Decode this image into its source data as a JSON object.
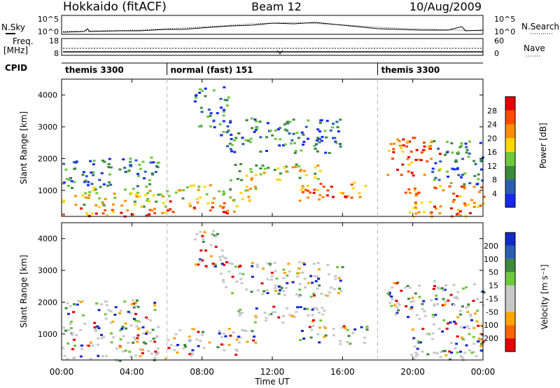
{
  "header": {
    "radar": "Hokkaido (fitACF)",
    "beam": "Beam 12",
    "date": "10/Aug/2009"
  },
  "status_panel": {
    "nsky_label": "N.Sky",
    "nsky_ticks": [
      "10^5",
      "10^0"
    ],
    "nsearch_label": "N.Search",
    "nsearch_ticks": [
      "10^5",
      "10^0"
    ],
    "freq_label_1": "Freq.",
    "freq_label_2": "[MHz]",
    "freq_ticks": [
      "18",
      "8"
    ],
    "nave_label": "Nave",
    "nave_ticks": [
      "60",
      "0"
    ],
    "cpid_label": "CPID"
  },
  "cpid_segments": [
    {
      "start_hour": 0,
      "end_hour": 6,
      "label": "themis 3300"
    },
    {
      "start_hour": 6,
      "end_hour": 18,
      "label": "normal (fast) 151"
    },
    {
      "start_hour": 18,
      "end_hour": 24,
      "label": "themis 3300"
    }
  ],
  "chart_data": [
    {
      "type": "heatmap",
      "parameter": "power",
      "ylabel": "Slant Range [km]",
      "xlabel": "Time UT",
      "x_range_hours": [
        0,
        24
      ],
      "xticks": [
        "00:00",
        "04:00",
        "08:00",
        "12:00",
        "16:00",
        "20:00",
        "00:00"
      ],
      "ylim": [
        180,
        4500
      ],
      "yticks": [
        "1000",
        "2000",
        "3000",
        "4000"
      ],
      "colorbar": {
        "label": "Power [dB]",
        "ticks": [
          "4",
          "8",
          "12",
          "16",
          "20",
          "24",
          "28"
        ],
        "colors": [
          "#1428f0",
          "#2a5fb0",
          "#3c8a3c",
          "#6ec83c",
          "#ffd700",
          "#ff8c00",
          "#ff4a00",
          "#e60000"
        ]
      },
      "echo_regions": [
        {
          "t0": 0.0,
          "t1": 6.0,
          "r0": 180,
          "r1": 500,
          "level": "high"
        },
        {
          "t0": 0.0,
          "t1": 6.0,
          "r0": 500,
          "r1": 1150,
          "level": "mid"
        },
        {
          "t0": 0.0,
          "t1": 5.5,
          "r0": 1150,
          "r1": 2100,
          "level": "low"
        },
        {
          "t0": 6.0,
          "t1": 10.0,
          "r0": 300,
          "r1": 700,
          "level": "high"
        },
        {
          "t0": 6.0,
          "t1": 11.0,
          "r0": 700,
          "r1": 1200,
          "level": "mid"
        },
        {
          "t0": 9.5,
          "t1": 15.0,
          "r0": 1350,
          "r1": 1900,
          "level": "mid"
        },
        {
          "t0": 13.5,
          "t1": 17.5,
          "r0": 700,
          "r1": 1300,
          "level": "high"
        },
        {
          "t0": 9.0,
          "t1": 16.0,
          "r0": 2200,
          "r1": 3300,
          "level": "low"
        },
        {
          "t0": 7.5,
          "t1": 9.5,
          "r0": 3000,
          "r1": 4300,
          "level": "low"
        },
        {
          "t0": 18.5,
          "t1": 21.5,
          "r0": 1500,
          "r1": 2700,
          "level": "high"
        },
        {
          "t0": 19.5,
          "t1": 24.0,
          "r0": 200,
          "r1": 1200,
          "level": "high"
        },
        {
          "t0": 21.0,
          "t1": 24.0,
          "r0": 1200,
          "r1": 2600,
          "level": "low"
        }
      ]
    },
    {
      "type": "heatmap",
      "parameter": "velocity",
      "ylabel": "Slant Range [km]",
      "xlabel": "Time UT",
      "x_range_hours": [
        0,
        24
      ],
      "xticks": [
        "00:00",
        "04:00",
        "08:00",
        "12:00",
        "16:00",
        "20:00",
        "00:00"
      ],
      "ylim": [
        180,
        4500
      ],
      "yticks": [
        "1000",
        "2000",
        "3000",
        "4000"
      ],
      "colorbar": {
        "label": "Velocity [m s⁻¹]",
        "ticks": [
          "200",
          "100",
          "50",
          "15",
          "-15",
          "-50",
          "-100",
          "-200"
        ],
        "colors": [
          "#1428c8",
          "#2a5fb0",
          "#3c8a3c",
          "#6ec83c",
          "#c8c8c8",
          "#c8c8c8",
          "#ffa500",
          "#ff6400",
          "#e60000"
        ]
      }
    }
  ]
}
